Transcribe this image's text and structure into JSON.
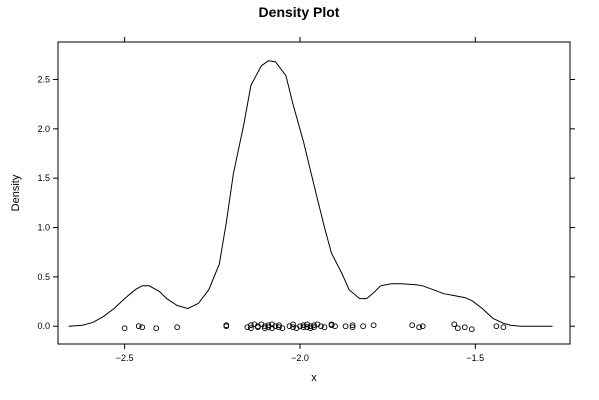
{
  "chart_data": {
    "type": "line",
    "title": "Density Plot",
    "xlabel": "x",
    "ylabel": "Density",
    "xlim": [
      -2.69,
      -1.23
    ],
    "ylim": [
      -0.18,
      2.88
    ],
    "x_ticks": [
      -2.5,
      -2.0,
      -1.5
    ],
    "x_tick_labels": [
      "−2.5",
      "−2.0",
      "−1.5"
    ],
    "y_ticks": [
      0.0,
      0.5,
      1.0,
      1.5,
      2.0,
      2.5
    ],
    "y_tick_labels": [
      "0.0",
      "0.5",
      "1.0",
      "1.5",
      "2.0",
      "2.5"
    ],
    "grid": false,
    "series": [
      {
        "kind": "density-line",
        "x": [
          -2.66,
          -2.62,
          -2.59,
          -2.56,
          -2.53,
          -2.5,
          -2.47,
          -2.45,
          -2.43,
          -2.4,
          -2.38,
          -2.35,
          -2.32,
          -2.29,
          -2.26,
          -2.23,
          -2.21,
          -2.19,
          -2.16,
          -2.14,
          -2.11,
          -2.09,
          -2.07,
          -2.04,
          -2.02,
          -1.99,
          -1.96,
          -1.93,
          -1.91,
          -1.88,
          -1.86,
          -1.83,
          -1.81,
          -1.79,
          -1.77,
          -1.74,
          -1.71,
          -1.67,
          -1.65,
          -1.62,
          -1.59,
          -1.56,
          -1.53,
          -1.51,
          -1.48,
          -1.45,
          -1.42,
          -1.4,
          -1.37,
          -1.35,
          -1.32,
          -1.28
        ],
        "y": [
          0.0,
          0.01,
          0.04,
          0.1,
          0.18,
          0.28,
          0.37,
          0.41,
          0.41,
          0.35,
          0.28,
          0.21,
          0.18,
          0.23,
          0.37,
          0.63,
          1.05,
          1.54,
          2.05,
          2.44,
          2.64,
          2.69,
          2.68,
          2.54,
          2.25,
          1.87,
          1.43,
          1.0,
          0.74,
          0.53,
          0.37,
          0.28,
          0.28,
          0.34,
          0.41,
          0.43,
          0.43,
          0.42,
          0.41,
          0.37,
          0.33,
          0.31,
          0.29,
          0.26,
          0.18,
          0.08,
          0.03,
          0.01,
          0.0,
          0.0,
          0.0,
          0.0
        ]
      },
      {
        "kind": "rug-points",
        "x": [
          -2.5,
          -2.46,
          -2.45,
          -2.41,
          -2.35,
          -2.21,
          -2.21,
          -2.15,
          -2.14,
          -2.14,
          -2.13,
          -2.12,
          -2.12,
          -2.11,
          -2.1,
          -2.1,
          -2.09,
          -2.09,
          -2.08,
          -2.08,
          -2.07,
          -2.06,
          -2.06,
          -2.05,
          -2.03,
          -2.02,
          -2.02,
          -2.01,
          -2.0,
          -1.99,
          -1.99,
          -1.98,
          -1.98,
          -1.97,
          -1.97,
          -1.96,
          -1.96,
          -1.95,
          -1.94,
          -1.93,
          -1.91,
          -1.91,
          -1.9,
          -1.87,
          -1.85,
          -1.85,
          -1.82,
          -1.79,
          -1.68,
          -1.66,
          -1.65,
          -1.56,
          -1.55,
          -1.53,
          -1.51,
          -1.44,
          -1.42
        ],
        "y": [
          -0.02,
          0.0,
          -0.01,
          -0.02,
          -0.01,
          0.01,
          0.0,
          -0.01,
          0.01,
          -0.02,
          0.02,
          0.0,
          -0.01,
          0.02,
          0.0,
          -0.02,
          0.01,
          -0.01,
          0.02,
          -0.02,
          0.0,
          -0.01,
          0.01,
          -0.02,
          0.0,
          -0.01,
          0.02,
          -0.02,
          0.0,
          0.01,
          -0.01,
          0.02,
          -0.01,
          0.0,
          -0.02,
          0.01,
          -0.01,
          0.02,
          0.0,
          -0.01,
          0.01,
          0.02,
          0.0,
          0.0,
          0.01,
          -0.01,
          0.0,
          0.01,
          0.01,
          -0.01,
          0.0,
          0.02,
          -0.02,
          -0.01,
          -0.03,
          0.0,
          -0.01
        ]
      }
    ]
  }
}
